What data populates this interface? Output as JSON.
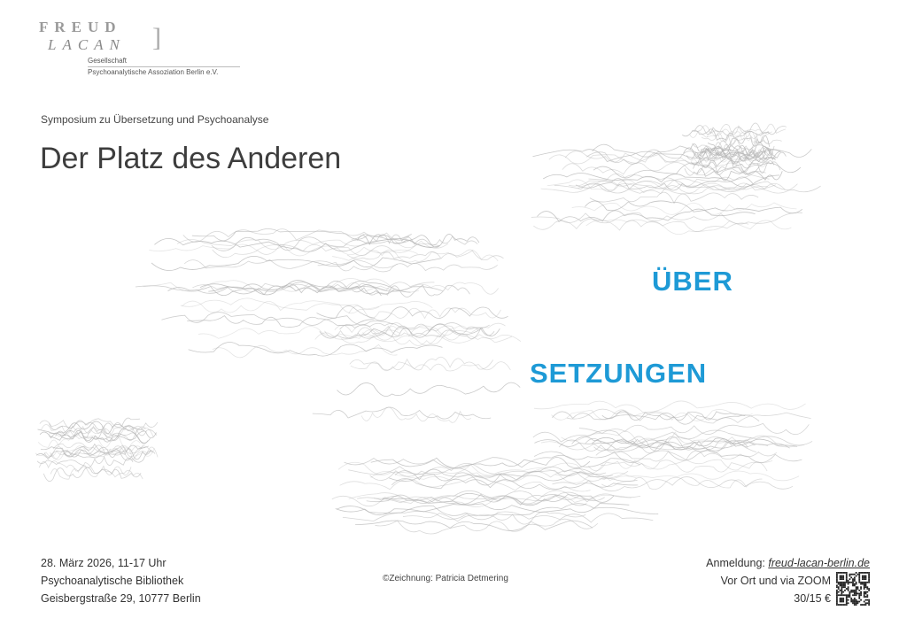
{
  "logo": {
    "freud": "FREUD",
    "lacan": "LACAN",
    "line1": "Gesellschaft",
    "line2": "Psychoanalytische Assoziation Berlin e.V."
  },
  "subtitle": "Symposium zu Übersetzung und Psychoanalyse",
  "title": "Der Platz des Anderen",
  "highlight": {
    "word1": "ÜBER",
    "word2": "SETZUNGEN",
    "color": "#1e9ad6"
  },
  "event": {
    "date": "28. März 2026, 11-17 Uhr",
    "venue": "Psychoanalytische Bibliothek",
    "address": "Geisbergstraße 29, 10777 Berlin"
  },
  "credit": "©Zeichnung: Patricia Detmering",
  "registration": {
    "label": "Anmeldung: ",
    "link": "freud-lacan-berlin.de",
    "mode": "Vor Ort und via ZOOM",
    "price": "30/15 €"
  },
  "artwork": {
    "description_icon": "abstract-drawing",
    "color": "#b5b5b5"
  }
}
